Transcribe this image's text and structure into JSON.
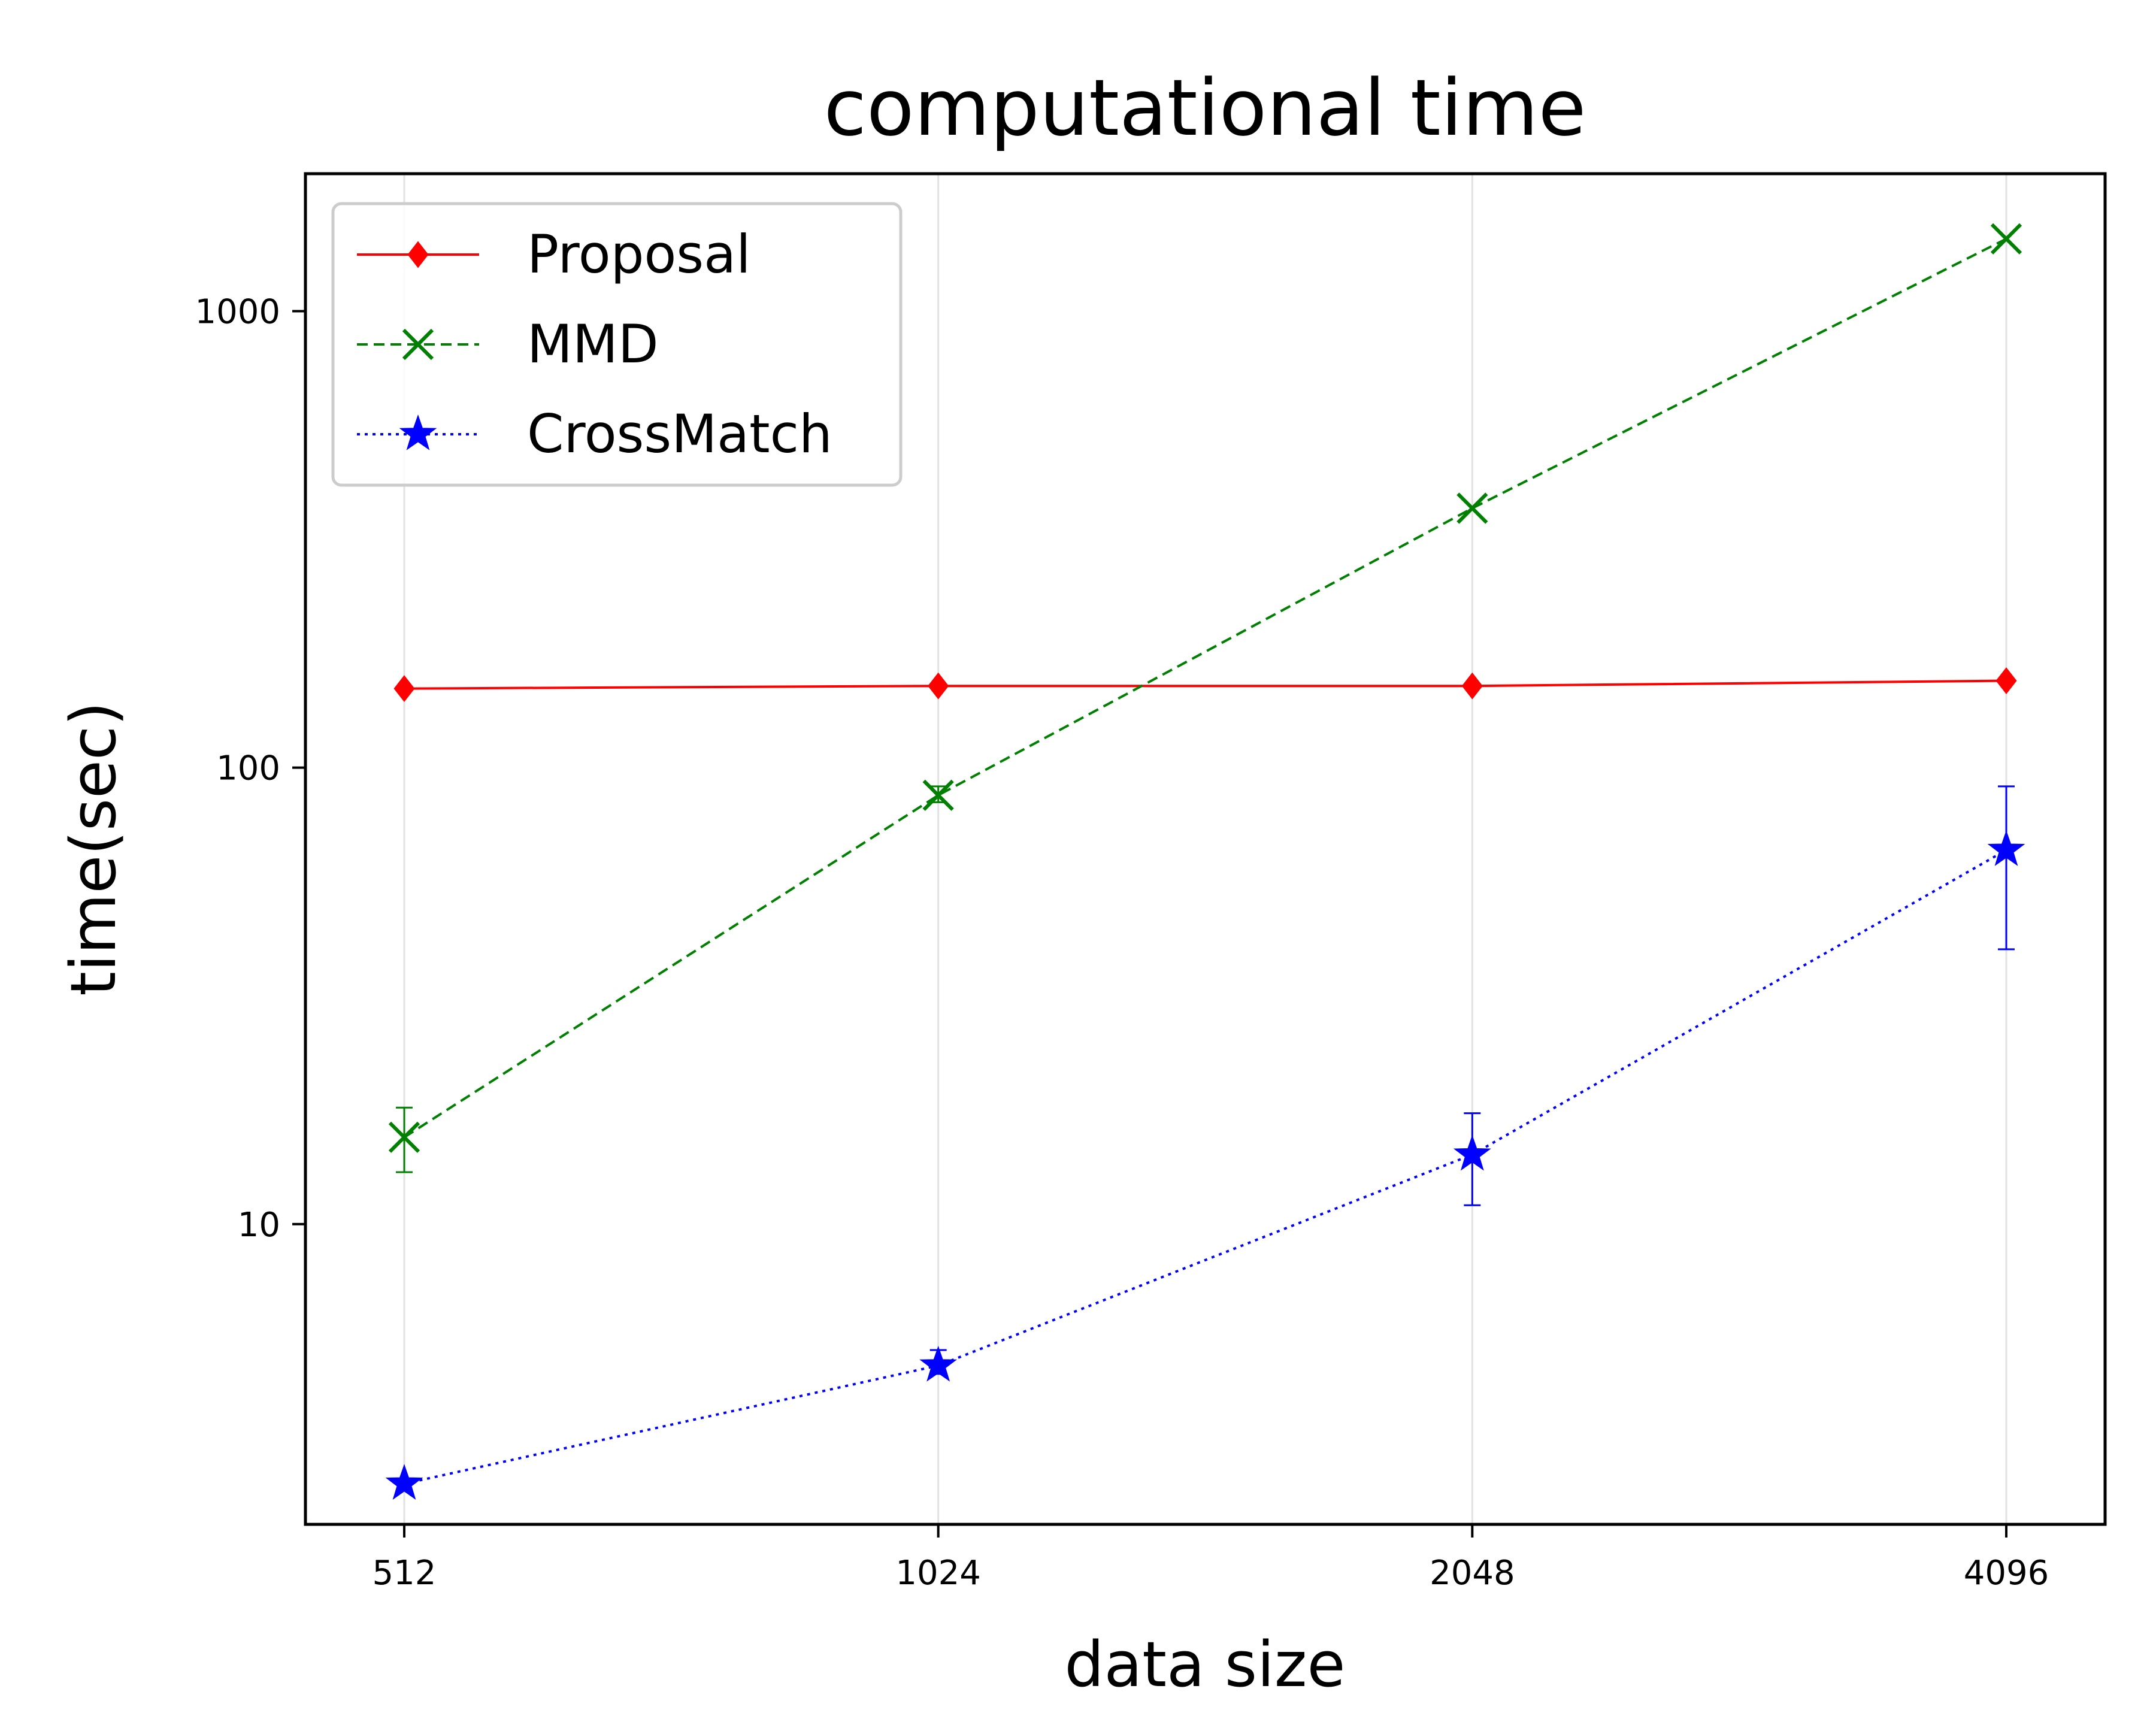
{
  "chart_data": {
    "type": "line",
    "title": "computational time",
    "xlabel": "data size",
    "ylabel": "time(sec)",
    "x_scale": "log2",
    "y_scale": "log10",
    "categories": [
      "512",
      "1024",
      "2048",
      "4096"
    ],
    "x": [
      512,
      1024,
      2048,
      4096
    ],
    "y_ticks": [
      10,
      100,
      1000
    ],
    "y_tick_labels": [
      "10",
      "100",
      "1000"
    ],
    "ylim": [
      2.2,
      2000
    ],
    "grid": "vertical",
    "legend_position": "top-left",
    "series": [
      {
        "name": "Proposal",
        "color": "#ff0000",
        "linestyle": "solid",
        "marker": "diamond",
        "values": [
          149,
          151,
          151,
          155
        ],
        "err_low": [
          149,
          151,
          151,
          155
        ],
        "err_high": [
          149,
          151,
          151,
          155
        ]
      },
      {
        "name": "MMD",
        "color": "#008000",
        "linestyle": "dashed",
        "marker": "x",
        "values": [
          15.5,
          87,
          370,
          1440
        ],
        "err_low": [
          13,
          84,
          370,
          1440
        ],
        "err_high": [
          18,
          91,
          370,
          1440
        ]
      },
      {
        "name": "CrossMatch",
        "color": "#0000ff",
        "linestyle": "dotted",
        "marker": "star",
        "values": [
          2.7,
          4.9,
          14.2,
          66
        ],
        "err_low": [
          2.7,
          4.7,
          11,
          40
        ],
        "err_high": [
          2.7,
          5.3,
          17.5,
          91
        ]
      }
    ]
  }
}
